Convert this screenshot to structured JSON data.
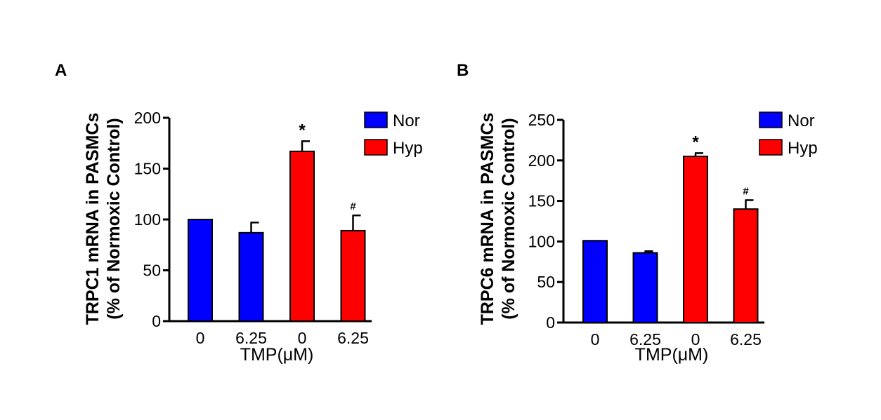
{
  "colors": {
    "nor": "#0000ff",
    "hyp": "#ff0000",
    "axis": "#000000"
  },
  "legend": {
    "nor_label": "Nor",
    "hyp_label": "Hyp"
  },
  "chart_data": [
    {
      "panel_label": "A",
      "type": "bar",
      "ylabel": "TRPC1 mRNA in PASMCs",
      "ylabel2": "(% of Normoxic Control)",
      "xlabel": "TMP(μM)",
      "categories": [
        "0",
        "6.25",
        "0",
        "6.25"
      ],
      "groups": [
        "Nor",
        "Nor",
        "Hyp",
        "Hyp"
      ],
      "values": [
        100,
        87,
        167,
        89
      ],
      "errors": [
        0,
        10,
        10,
        15
      ],
      "annotations": [
        "",
        "",
        "*",
        "#"
      ],
      "ylim": [
        0,
        200
      ],
      "yticks": [
        0,
        50,
        100,
        150,
        200
      ],
      "grid": false,
      "legend_position": "top-right"
    },
    {
      "panel_label": "B",
      "type": "bar",
      "ylabel": "TRPC6 mRNA in PASMCs",
      "ylabel2": "(% of Normoxic Control)",
      "xlabel": "TMP(μM)",
      "categories": [
        "0",
        "6.25",
        "0",
        "6.25"
      ],
      "groups": [
        "Nor",
        "Nor",
        "Hyp",
        "Hyp"
      ],
      "values": [
        101,
        86,
        205,
        140
      ],
      "errors": [
        0,
        2,
        4,
        11
      ],
      "annotations": [
        "",
        "",
        "*",
        "#"
      ],
      "ylim": [
        0,
        250
      ],
      "yticks": [
        0,
        50,
        100,
        150,
        200,
        250
      ],
      "grid": false,
      "legend_position": "top-right"
    }
  ]
}
